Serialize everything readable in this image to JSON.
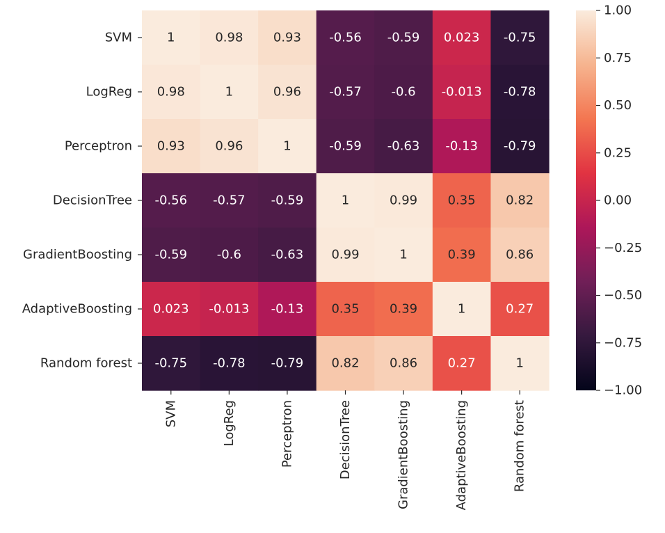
{
  "chart_data": {
    "type": "heatmap",
    "title": "",
    "xlabel": "",
    "ylabel": "",
    "row_labels": [
      "SVM",
      "LogReg",
      "Perceptron",
      "DecisionTree",
      "GradientBoosting",
      "AdaptiveBoosting",
      "Random forest"
    ],
    "col_labels": [
      "SVM",
      "LogReg",
      "Perceptron",
      "DecisionTree",
      "GradientBoosting",
      "AdaptiveBoosting",
      "Random forest"
    ],
    "values": [
      [
        1,
        0.98,
        0.93,
        -0.56,
        -0.59,
        0.023,
        -0.75
      ],
      [
        0.98,
        1,
        0.96,
        -0.57,
        -0.6,
        -0.013,
        -0.78
      ],
      [
        0.93,
        0.96,
        1,
        -0.59,
        -0.63,
        -0.13,
        -0.79
      ],
      [
        -0.56,
        -0.57,
        -0.59,
        1,
        0.99,
        0.35,
        0.82
      ],
      [
        -0.59,
        -0.6,
        -0.63,
        0.99,
        1,
        0.39,
        0.86
      ],
      [
        0.023,
        -0.013,
        -0.13,
        0.35,
        0.39,
        1,
        0.27
      ],
      [
        -0.75,
        -0.78,
        -0.79,
        0.82,
        0.86,
        0.27,
        1
      ]
    ],
    "cell_labels": [
      [
        "1",
        "0.98",
        "0.93",
        "-0.56",
        "-0.59",
        "0.023",
        "-0.75"
      ],
      [
        "0.98",
        "1",
        "0.96",
        "-0.57",
        "-0.6",
        "-0.013",
        "-0.78"
      ],
      [
        "0.93",
        "0.96",
        "1",
        "-0.59",
        "-0.63",
        "-0.13",
        "-0.79"
      ],
      [
        "-0.56",
        "-0.57",
        "-0.59",
        "1",
        "0.99",
        "0.35",
        "0.82"
      ],
      [
        "-0.59",
        "-0.6",
        "-0.63",
        "0.99",
        "1",
        "0.39",
        "0.86"
      ],
      [
        "0.023",
        "-0.013",
        "-0.13",
        "0.35",
        "0.39",
        "1",
        "0.27"
      ],
      [
        "-0.75",
        "-0.78",
        "-0.79",
        "0.82",
        "0.86",
        "0.27",
        "1"
      ]
    ],
    "colorbar": {
      "vmin": -1.0,
      "vmax": 1.0,
      "ticks": [
        1.0,
        0.75,
        0.5,
        0.25,
        0.0,
        -0.25,
        -0.5,
        -0.75,
        -1.0
      ],
      "tick_labels": [
        "1.00",
        "0.75",
        "0.50",
        "0.25",
        "0.00",
        "−0.25",
        "−0.50",
        "−0.75",
        "−1.00"
      ],
      "colormap": "rocket",
      "colormap_stops": [
        "#03051a",
        "#35193e",
        "#701f57",
        "#ad1759",
        "#e13342",
        "#f37651",
        "#f6b48f",
        "#faebdd"
      ]
    },
    "grid": false
  }
}
